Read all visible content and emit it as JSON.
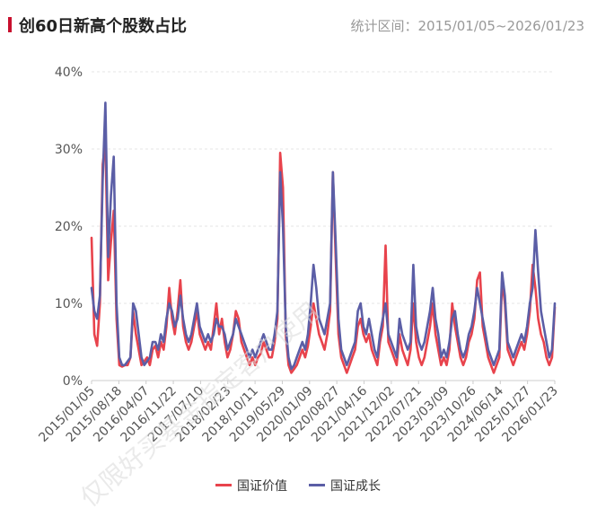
{
  "header": {
    "title": "创60日新高个股数占比",
    "range_text": "统计区间：2015/01/05~2026/01/23"
  },
  "colors": {
    "series_red": "#e8434c",
    "series_blue": "#5b5ea6",
    "grid": "#e5e5e5",
    "axis": "#cccccc"
  },
  "chart_data": {
    "type": "line",
    "title": "创60日新高个股数占比",
    "xlabel": "",
    "ylabel": "",
    "x_tick_labels": [
      "2015/01/05",
      "2015/08/18",
      "2016/04/07",
      "2016/11/22",
      "2017/07/10",
      "2018/02/23",
      "2018/10/11",
      "2019/05/29",
      "2020/01/09",
      "2020/08/27",
      "2021/04/16",
      "2021/12/02",
      "2022/07/21",
      "2023/03/09",
      "2023/10/26",
      "2024/06/14",
      "2025/01/27",
      "2026/01/23"
    ],
    "y_tick_labels": [
      "0%",
      "10%",
      "20%",
      "30%",
      "40%"
    ],
    "ylim": [
      0,
      40
    ],
    "grid": true,
    "legend_position": "bottom",
    "series": [
      {
        "name": "国证价值",
        "values": [
          18.5,
          6,
          4.5,
          10,
          28,
          31,
          13,
          18,
          22,
          8,
          2,
          1.8,
          2,
          2,
          3,
          9,
          6,
          4,
          2,
          2.5,
          3,
          2,
          4,
          4.5,
          3,
          5,
          4,
          7,
          12,
          8,
          6,
          9,
          13,
          7,
          5,
          4,
          5,
          7,
          9,
          6,
          5,
          4,
          5,
          4,
          7,
          10,
          6,
          8,
          5,
          3,
          4,
          6,
          9,
          8,
          5,
          4,
          3,
          2,
          3,
          2,
          3,
          3.5,
          5,
          4,
          3,
          3,
          5,
          8,
          29.5,
          25,
          6,
          2,
          1,
          1.5,
          2,
          3,
          4,
          3,
          4.5,
          7,
          10,
          8,
          6,
          5,
          4,
          6,
          9,
          27,
          16,
          6,
          3,
          2,
          1,
          2,
          3,
          4,
          7,
          8,
          6,
          5,
          6,
          4,
          3,
          2,
          5,
          7,
          17.5,
          5,
          4,
          3,
          2,
          6,
          4,
          3,
          2,
          4,
          10,
          5,
          3,
          2,
          3,
          5,
          7,
          10,
          6,
          4,
          2,
          3,
          2,
          4,
          10,
          7,
          5,
          3,
          2,
          3,
          5,
          6,
          8,
          13,
          14,
          7,
          5,
          3,
          2,
          1,
          2,
          3,
          13,
          10,
          4,
          3,
          2,
          3,
          4,
          5,
          4,
          6,
          9,
          15,
          12,
          8,
          6,
          5,
          3,
          2,
          3,
          9.5
        ]
      },
      {
        "name": "国证成长",
        "values": [
          12,
          9,
          8,
          11,
          26,
          36,
          16,
          24,
          29,
          10,
          3,
          2,
          2,
          2.5,
          3,
          10,
          9,
          6,
          3,
          2,
          2.5,
          3,
          5,
          5,
          4,
          6,
          5,
          8,
          10,
          9,
          7,
          8,
          11,
          8,
          6,
          5,
          6,
          8,
          10,
          7,
          6,
          5,
          6,
          5,
          6,
          8,
          7,
          7,
          6,
          4,
          5,
          6,
          8,
          7,
          6,
          5,
          4,
          3,
          4,
          3,
          4,
          5,
          6,
          5,
          4,
          4,
          6,
          9,
          27,
          20,
          7,
          3,
          1.5,
          2,
          3,
          4,
          5,
          4,
          6,
          10,
          15,
          12,
          8,
          7,
          6,
          8,
          10,
          27,
          18,
          8,
          4,
          3,
          2,
          3,
          4,
          5,
          9,
          10,
          7,
          6,
          8,
          6,
          4,
          3,
          6,
          8,
          10,
          6,
          5,
          4,
          3,
          8,
          6,
          5,
          4,
          5,
          15,
          7,
          5,
          4,
          5,
          7,
          9,
          12,
          8,
          6,
          3,
          4,
          3,
          5,
          8,
          9,
          6,
          4,
          3,
          4,
          6,
          7,
          9,
          12,
          10,
          8,
          6,
          4,
          3,
          2,
          3,
          4,
          14,
          11,
          5,
          4,
          3,
          4,
          5,
          6,
          5,
          7,
          10,
          12,
          19.5,
          14,
          9,
          7,
          5,
          3,
          4,
          10
        ]
      }
    ]
  },
  "watermark": "仅限好买基金指定客户使用"
}
